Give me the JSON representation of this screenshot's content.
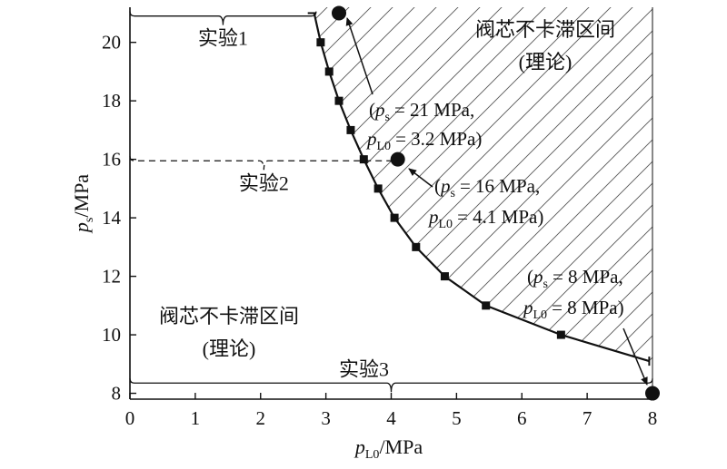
{
  "colors": {
    "ink": "#111111",
    "hatch": "#555555",
    "background": "#ffffff"
  },
  "chart_data": {
    "type": "line",
    "x_axis": {
      "label_symbol": "p",
      "label_subscript": "L0",
      "label_unit": "/MPa",
      "range": [
        0,
        8
      ],
      "ticks": [
        0,
        1,
        2,
        3,
        4,
        5,
        6,
        7,
        8
      ]
    },
    "y_axis": {
      "label_symbol": "p",
      "label_subscript": "s",
      "label_unit": "/MPa",
      "range": [
        7.8,
        21.2
      ],
      "ticks": [
        8,
        10,
        12,
        14,
        16,
        18,
        20
      ]
    },
    "grid": false,
    "boundary_curve": {
      "x": [
        2.82,
        2.92,
        3.05,
        3.2,
        3.38,
        3.58,
        3.8,
        4.05,
        4.38,
        4.82,
        5.45,
        6.6,
        7.95
      ],
      "y": [
        21,
        20,
        19,
        18,
        17,
        16,
        15,
        14,
        13,
        12,
        11,
        10,
        9.1
      ],
      "markers": [
        {
          "x": 2.92,
          "y": 20
        },
        {
          "x": 3.05,
          "y": 19
        },
        {
          "x": 3.2,
          "y": 18
        },
        {
          "x": 3.38,
          "y": 17
        },
        {
          "x": 3.58,
          "y": 16
        },
        {
          "x": 3.8,
          "y": 15
        },
        {
          "x": 4.05,
          "y": 14
        },
        {
          "x": 4.38,
          "y": 13
        },
        {
          "x": 4.82,
          "y": 12
        },
        {
          "x": 5.45,
          "y": 11
        },
        {
          "x": 6.6,
          "y": 10
        }
      ]
    },
    "experiment_points": [
      {
        "x": 3.2,
        "y": 21,
        "ps_label": "= 21 MPa,",
        "pl_label": "= 3.2 MPa)"
      },
      {
        "x": 4.1,
        "y": 16,
        "ps_label": "= 16 MPa,",
        "pl_label": "= 4.1 MPa)"
      },
      {
        "x": 8,
        "y": 8,
        "ps_label": "= 8 MPa,",
        "pl_label": "= 8 MPa)"
      }
    ],
    "experiments": [
      {
        "label": "实验1",
        "y": 20.9,
        "x_start": 0,
        "x_end": 2.85
      },
      {
        "label": "实验2",
        "y": 15.95,
        "x_start": 0,
        "x_end": 4.1
      },
      {
        "label": "实验3",
        "y": 8.35,
        "x_start": 0,
        "x_end": 8
      }
    ],
    "regions": {
      "upper_line1": "阀芯不卡滞区间",
      "upper_line2": "(理论)",
      "lower_line1": "阀芯不卡滞区间",
      "lower_line2": "(理论)"
    },
    "annotation_symbols": {
      "open_paren": "(",
      "p": "p",
      "sub_s": "s",
      "sub_l0": "L0"
    }
  }
}
